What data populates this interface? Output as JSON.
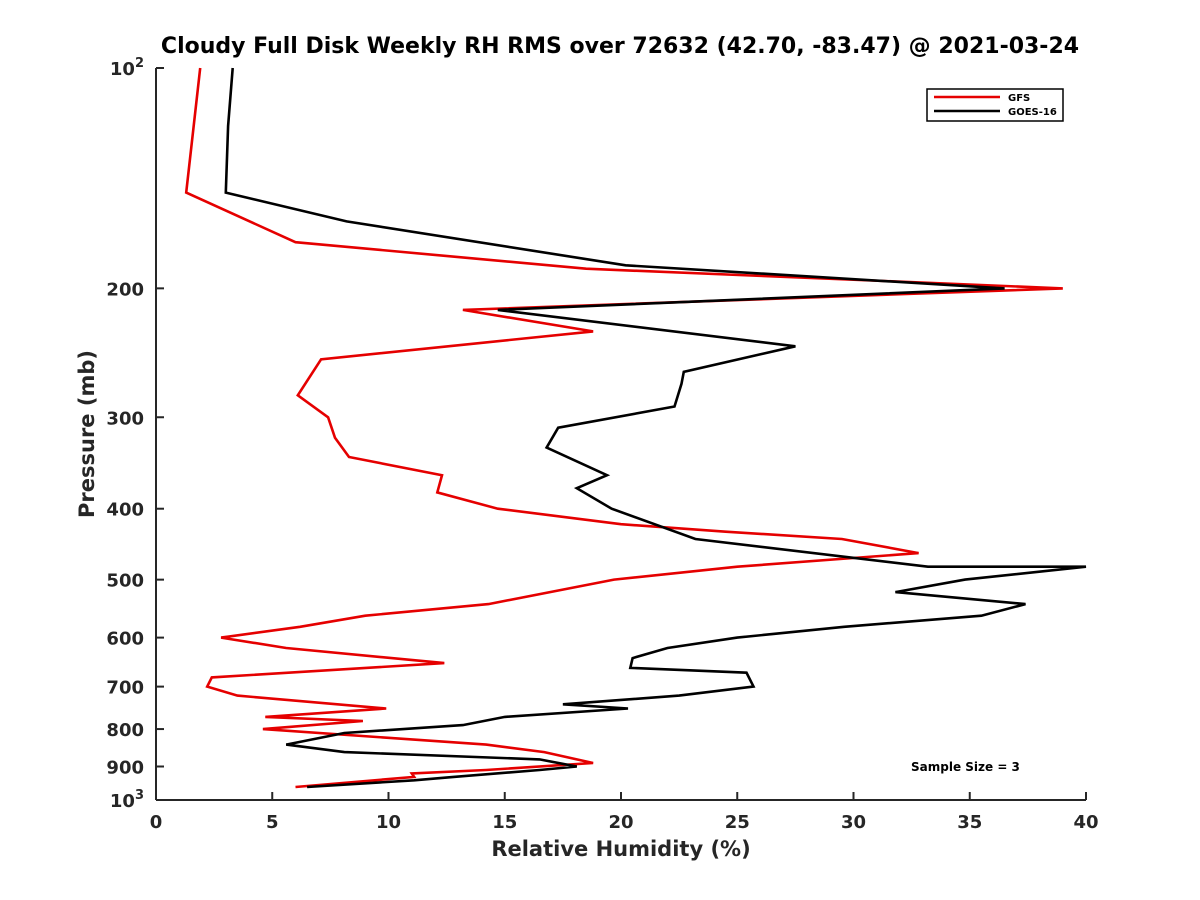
{
  "chart_data": {
    "type": "line",
    "title": "Cloudy Full Disk Weekly RH RMS over 72632 (42.70, -83.47) @ 2021-03-24",
    "xlabel": "Relative Humidity (%)",
    "ylabel": "Pressure (mb)",
    "xlim": [
      0,
      40
    ],
    "ylim": [
      100,
      1000
    ],
    "yscale": "log",
    "y_reversed": true,
    "grid": false,
    "legend_position": "top-right",
    "annotation": "Sample Size = 3",
    "x_ticks": [
      0,
      5,
      10,
      15,
      20,
      25,
      30,
      35,
      40
    ],
    "y_ticks": [
      {
        "value": 100,
        "base": "10",
        "exp": "2"
      },
      {
        "value": 200,
        "label": "200"
      },
      {
        "value": 300,
        "label": "300"
      },
      {
        "value": 400,
        "label": "400"
      },
      {
        "value": 500,
        "label": "500"
      },
      {
        "value": 600,
        "label": "600"
      },
      {
        "value": 700,
        "label": "700"
      },
      {
        "value": 800,
        "label": "800"
      },
      {
        "value": 900,
        "label": "900"
      },
      {
        "value": 1000,
        "base": "10",
        "exp": "3"
      }
    ],
    "series": [
      {
        "name": "GFS",
        "color": "#e50000",
        "x": [
          1.9,
          1.3,
          6.0,
          18.5,
          39.0,
          13.2,
          18.8,
          7.1,
          6.1,
          7.4,
          7.7,
          8.3,
          12.3,
          12.1,
          14.7,
          20.0,
          24.5,
          29.5,
          32.8,
          25.0,
          19.7,
          14.3,
          9.0,
          6.2,
          2.8,
          5.6,
          12.4,
          2.4,
          2.2,
          3.5,
          9.9,
          4.7,
          8.9,
          4.6,
          14.2,
          16.7,
          18.8,
          14.2,
          11.0,
          11.1,
          6.0
        ],
        "y": [
          100,
          148,
          173,
          188,
          200,
          214,
          229,
          250,
          280,
          300,
          320,
          340,
          360,
          380,
          400,
          420,
          430,
          440,
          460,
          480,
          500,
          540,
          560,
          580,
          600,
          620,
          650,
          680,
          700,
          720,
          750,
          770,
          780,
          800,
          840,
          860,
          890,
          910,
          920,
          930,
          960
        ]
      },
      {
        "name": "GOES-16",
        "color": "#000000",
        "x": [
          3.3,
          3.1,
          3.0,
          8.2,
          20.2,
          36.5,
          14.7,
          27.5,
          22.7,
          22.6,
          22.3,
          17.3,
          16.8,
          19.4,
          18.1,
          19.6,
          23.2,
          33.2,
          40.0,
          34.8,
          31.8,
          37.4,
          35.5,
          29.6,
          25.0,
          22.0,
          20.5,
          20.4,
          25.4,
          25.7,
          22.5,
          17.5,
          20.3,
          15.0,
          13.2,
          8.1,
          5.6,
          8.1,
          16.5,
          18.1,
          16.5,
          12.8,
          11.1,
          6.5
        ],
        "y": [
          100,
          120,
          148,
          162,
          186,
          200,
          214,
          240,
          260,
          270,
          290,
          310,
          330,
          360,
          375,
          400,
          440,
          480,
          480,
          500,
          520,
          540,
          560,
          580,
          600,
          620,
          640,
          660,
          670,
          700,
          720,
          740,
          750,
          770,
          790,
          810,
          840,
          860,
          880,
          900,
          910,
          930,
          940,
          960
        ]
      }
    ]
  }
}
